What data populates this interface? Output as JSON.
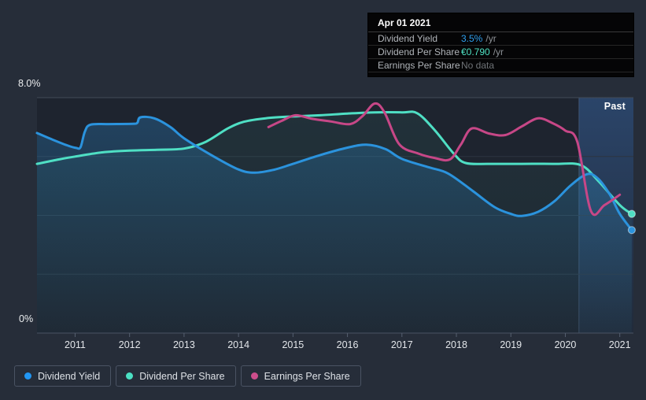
{
  "tooltip": {
    "date": "Apr 01 2021",
    "rows": [
      {
        "label": "Dividend Yield",
        "value": "3.5%",
        "unit": "/yr",
        "value_color": "#2e9fee"
      },
      {
        "label": "Dividend Per Share",
        "value": "€0.790",
        "unit": "/yr",
        "value_color": "#4fe3c4"
      },
      {
        "label": "Earnings Per Share",
        "value": "No data",
        "unit": "",
        "value_color": "#6f7377"
      }
    ]
  },
  "legend": {
    "items": [
      {
        "label": "Dividend Yield",
        "color": "#2196f3"
      },
      {
        "label": "Dividend Per Share",
        "color": "#4be0c3"
      },
      {
        "label": "Earnings Per Share",
        "color": "#cc4e8c"
      }
    ]
  },
  "chart_data": {
    "type": "line",
    "title": "",
    "xlabel": "",
    "ylabel": "",
    "grid": "horizontal",
    "legend_position": "bottom",
    "xlim": [
      2010.3,
      2021.25
    ],
    "ylim": [
      0,
      8
    ],
    "ytick_labels": {
      "top": "8.0%",
      "bottom": "0%"
    },
    "x_ticks": [
      2011,
      2012,
      2013,
      2014,
      2015,
      2016,
      2017,
      2018,
      2019,
      2020,
      2021
    ],
    "grid_values": [
      2,
      4,
      6,
      8
    ],
    "past_band": {
      "start": 2020.25,
      "end": 2021.25,
      "label": "Past"
    },
    "series": [
      {
        "name": "Dividend Per Share",
        "key": "dividend-per-share",
        "color": "#4fdfc4",
        "fill_opacity": 0.07,
        "end_dot": true,
        "points": [
          [
            2010.3,
            5.75
          ],
          [
            2010.7,
            5.9
          ],
          [
            2011.0,
            6.0
          ],
          [
            2011.5,
            6.14
          ],
          [
            2012.0,
            6.2
          ],
          [
            2012.5,
            6.23
          ],
          [
            2013.0,
            6.27
          ],
          [
            2013.4,
            6.5
          ],
          [
            2013.8,
            6.95
          ],
          [
            2014.1,
            7.18
          ],
          [
            2014.5,
            7.3
          ],
          [
            2015.0,
            7.36
          ],
          [
            2015.5,
            7.4
          ],
          [
            2016.0,
            7.46
          ],
          [
            2016.5,
            7.5
          ],
          [
            2017.0,
            7.5
          ],
          [
            2017.28,
            7.47
          ],
          [
            2017.6,
            6.9
          ],
          [
            2017.95,
            6.1
          ],
          [
            2018.17,
            5.78
          ],
          [
            2018.6,
            5.75
          ],
          [
            2019.2,
            5.75
          ],
          [
            2019.8,
            5.75
          ],
          [
            2020.28,
            5.71
          ],
          [
            2020.6,
            5.18
          ],
          [
            2021.0,
            4.35
          ],
          [
            2021.22,
            4.05
          ]
        ]
      },
      {
        "name": "Dividend Yield",
        "key": "dividend-yield",
        "color": "#2b93dd",
        "fill_opacity": 0.28,
        "end_dot": true,
        "points": [
          [
            2010.3,
            6.8
          ],
          [
            2010.55,
            6.6
          ],
          [
            2010.85,
            6.38
          ],
          [
            2011.02,
            6.29
          ],
          [
            2011.1,
            6.32
          ],
          [
            2011.18,
            6.85
          ],
          [
            2011.28,
            7.08
          ],
          [
            2011.6,
            7.1
          ],
          [
            2012.05,
            7.11
          ],
          [
            2012.14,
            7.14
          ],
          [
            2012.2,
            7.33
          ],
          [
            2012.45,
            7.3
          ],
          [
            2012.75,
            7.0
          ],
          [
            2013.0,
            6.62
          ],
          [
            2013.5,
            6.05
          ],
          [
            2014.0,
            5.56
          ],
          [
            2014.3,
            5.45
          ],
          [
            2014.65,
            5.55
          ],
          [
            2015.0,
            5.75
          ],
          [
            2015.5,
            6.05
          ],
          [
            2016.0,
            6.3
          ],
          [
            2016.35,
            6.4
          ],
          [
            2016.7,
            6.25
          ],
          [
            2017.0,
            5.92
          ],
          [
            2017.5,
            5.63
          ],
          [
            2017.85,
            5.42
          ],
          [
            2018.3,
            4.83
          ],
          [
            2018.7,
            4.28
          ],
          [
            2019.0,
            4.05
          ],
          [
            2019.2,
            3.98
          ],
          [
            2019.5,
            4.12
          ],
          [
            2019.8,
            4.48
          ],
          [
            2020.1,
            5.02
          ],
          [
            2020.4,
            5.4
          ],
          [
            2020.6,
            5.25
          ],
          [
            2020.82,
            4.7
          ],
          [
            2021.0,
            4.05
          ],
          [
            2021.22,
            3.5
          ]
        ]
      },
      {
        "name": "Earnings Per Share",
        "key": "earnings-per-share",
        "color": "#c74787",
        "fill_opacity": 0,
        "end_dot": false,
        "points": [
          [
            2014.55,
            7.0
          ],
          [
            2014.8,
            7.22
          ],
          [
            2015.05,
            7.4
          ],
          [
            2015.35,
            7.28
          ],
          [
            2015.7,
            7.19
          ],
          [
            2016.05,
            7.1
          ],
          [
            2016.28,
            7.38
          ],
          [
            2016.5,
            7.8
          ],
          [
            2016.68,
            7.5
          ],
          [
            2016.95,
            6.42
          ],
          [
            2017.3,
            6.1
          ],
          [
            2017.6,
            5.95
          ],
          [
            2017.88,
            5.9
          ],
          [
            2018.08,
            6.4
          ],
          [
            2018.28,
            6.95
          ],
          [
            2018.6,
            6.78
          ],
          [
            2018.9,
            6.73
          ],
          [
            2019.2,
            7.02
          ],
          [
            2019.5,
            7.3
          ],
          [
            2019.78,
            7.12
          ],
          [
            2020.0,
            6.88
          ],
          [
            2020.22,
            6.5
          ],
          [
            2020.47,
            4.15
          ],
          [
            2020.72,
            4.35
          ],
          [
            2021.0,
            4.7
          ]
        ]
      }
    ]
  }
}
